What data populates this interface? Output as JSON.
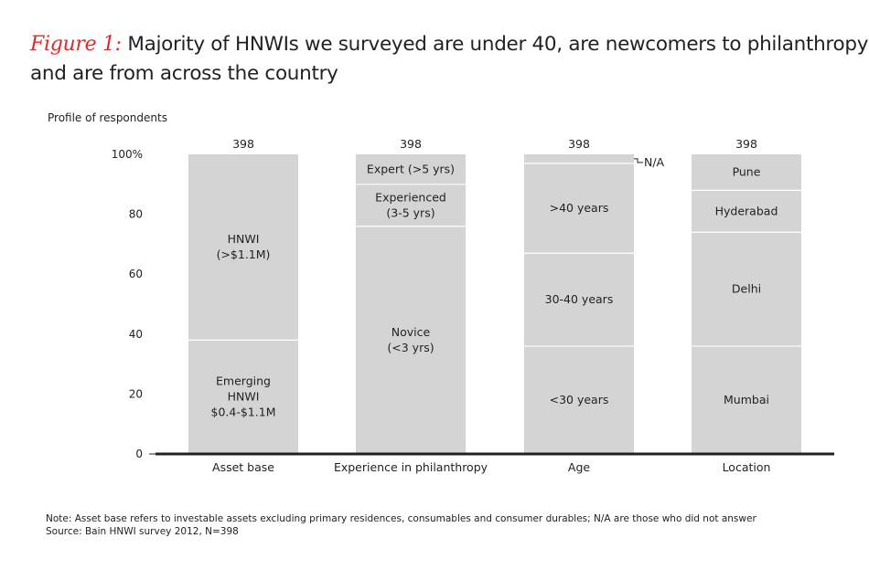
{
  "figure_label": "Figure 1:",
  "title_line1": "Majority of HNWIs we surveyed are under 40, are newcomers to philanthropy",
  "title_line2": "and are from across the country",
  "note": "Note: Asset base refers to investable assets excluding primary residences, consumables and consumer durables; N/A are those who did not answer",
  "source": "Source: Bain HNWI survey 2012, N=398",
  "colors": {
    "bar": "#d4d4d4",
    "divider": "#ffffff",
    "axis": "#222222",
    "accent": "#e0292b"
  },
  "chart_data": {
    "type": "bar",
    "stacked": true,
    "ylabel": "Profile of respondents",
    "ylim": [
      0,
      100
    ],
    "yticks": [
      "0",
      "20",
      "40",
      "60",
      "80",
      "100%"
    ],
    "ytick_values": [
      0,
      20,
      40,
      60,
      80,
      100
    ],
    "categories": [
      "Asset base",
      "Experience in philanthropy",
      "Age",
      "Location"
    ],
    "totals": [
      "398",
      "398",
      "398",
      "398"
    ],
    "bars": [
      {
        "category": "Asset base",
        "segments": [
          {
            "label": "Emerging HNWI $0.4-$1.1M",
            "lines": [
              "Emerging",
              "HNWI",
              "$0.4-$1.1M"
            ],
            "value": 38
          },
          {
            "label": "HNWI (>$1.1M)",
            "lines": [
              "HNWI",
              "(>$1.1M)"
            ],
            "value": 62
          }
        ]
      },
      {
        "category": "Experience in philanthropy",
        "segments": [
          {
            "label": "Novice (<3 yrs)",
            "lines": [
              "Novice",
              "(<3 yrs)"
            ],
            "value": 76
          },
          {
            "label": "Experienced (3-5 yrs)",
            "lines": [
              "Experienced",
              "(3-5 yrs)"
            ],
            "value": 14
          },
          {
            "label": "Expert (>5 yrs)",
            "lines": [
              "Expert (>5 yrs)"
            ],
            "value": 10
          }
        ]
      },
      {
        "category": "Age",
        "segments": [
          {
            "label": "<30 years",
            "lines": [
              "<30 years"
            ],
            "value": 36
          },
          {
            "label": "30-40 years",
            "lines": [
              "30-40 years"
            ],
            "value": 31
          },
          {
            "label": ">40 years",
            "lines": [
              ">40 years"
            ],
            "value": 30
          },
          {
            "label": "N/A",
            "lines": [],
            "value": 3,
            "callout": "N/A"
          }
        ]
      },
      {
        "category": "Location",
        "segments": [
          {
            "label": "Mumbai",
            "lines": [
              "Mumbai"
            ],
            "value": 36
          },
          {
            "label": "Delhi",
            "lines": [
              "Delhi"
            ],
            "value": 38
          },
          {
            "label": "Hyderabad",
            "lines": [
              "Hyderabad"
            ],
            "value": 14
          },
          {
            "label": "Pune",
            "lines": [
              "Pune"
            ],
            "value": 12
          }
        ]
      }
    ]
  }
}
